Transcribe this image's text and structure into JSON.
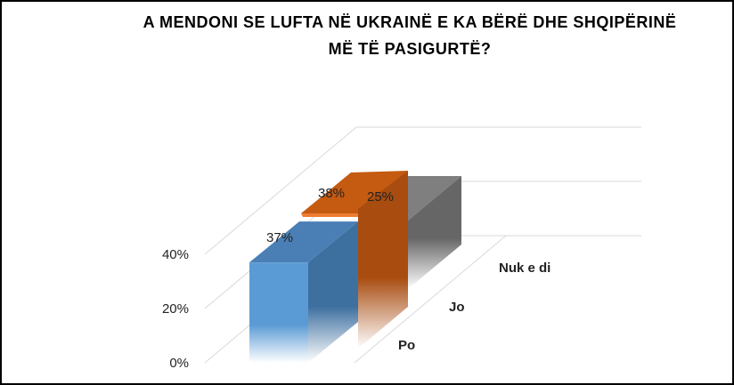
{
  "chart_data": {
    "type": "bar",
    "title_lines": [
      "A MENDONI SE LUFTA NË UKRAINË E KA BËRË DHE SHQIPËRINË",
      "MË TË PASIGURTË?"
    ],
    "categories": [
      "Po",
      "Jo",
      "Nuk e di"
    ],
    "values": [
      37,
      38,
      25
    ],
    "data_labels": [
      "37%",
      "38%",
      "25%"
    ],
    "y_ticks": [
      "0%",
      "20%",
      "40%"
    ],
    "ylim": [
      0,
      40
    ],
    "colors": {
      "Po": "#5b9bd5",
      "Jo": "#c55a11",
      "Nuk e di": "#7f7f7f",
      "gridline": "#d9d9d9"
    },
    "grid": true,
    "view": "3d-perspective"
  }
}
